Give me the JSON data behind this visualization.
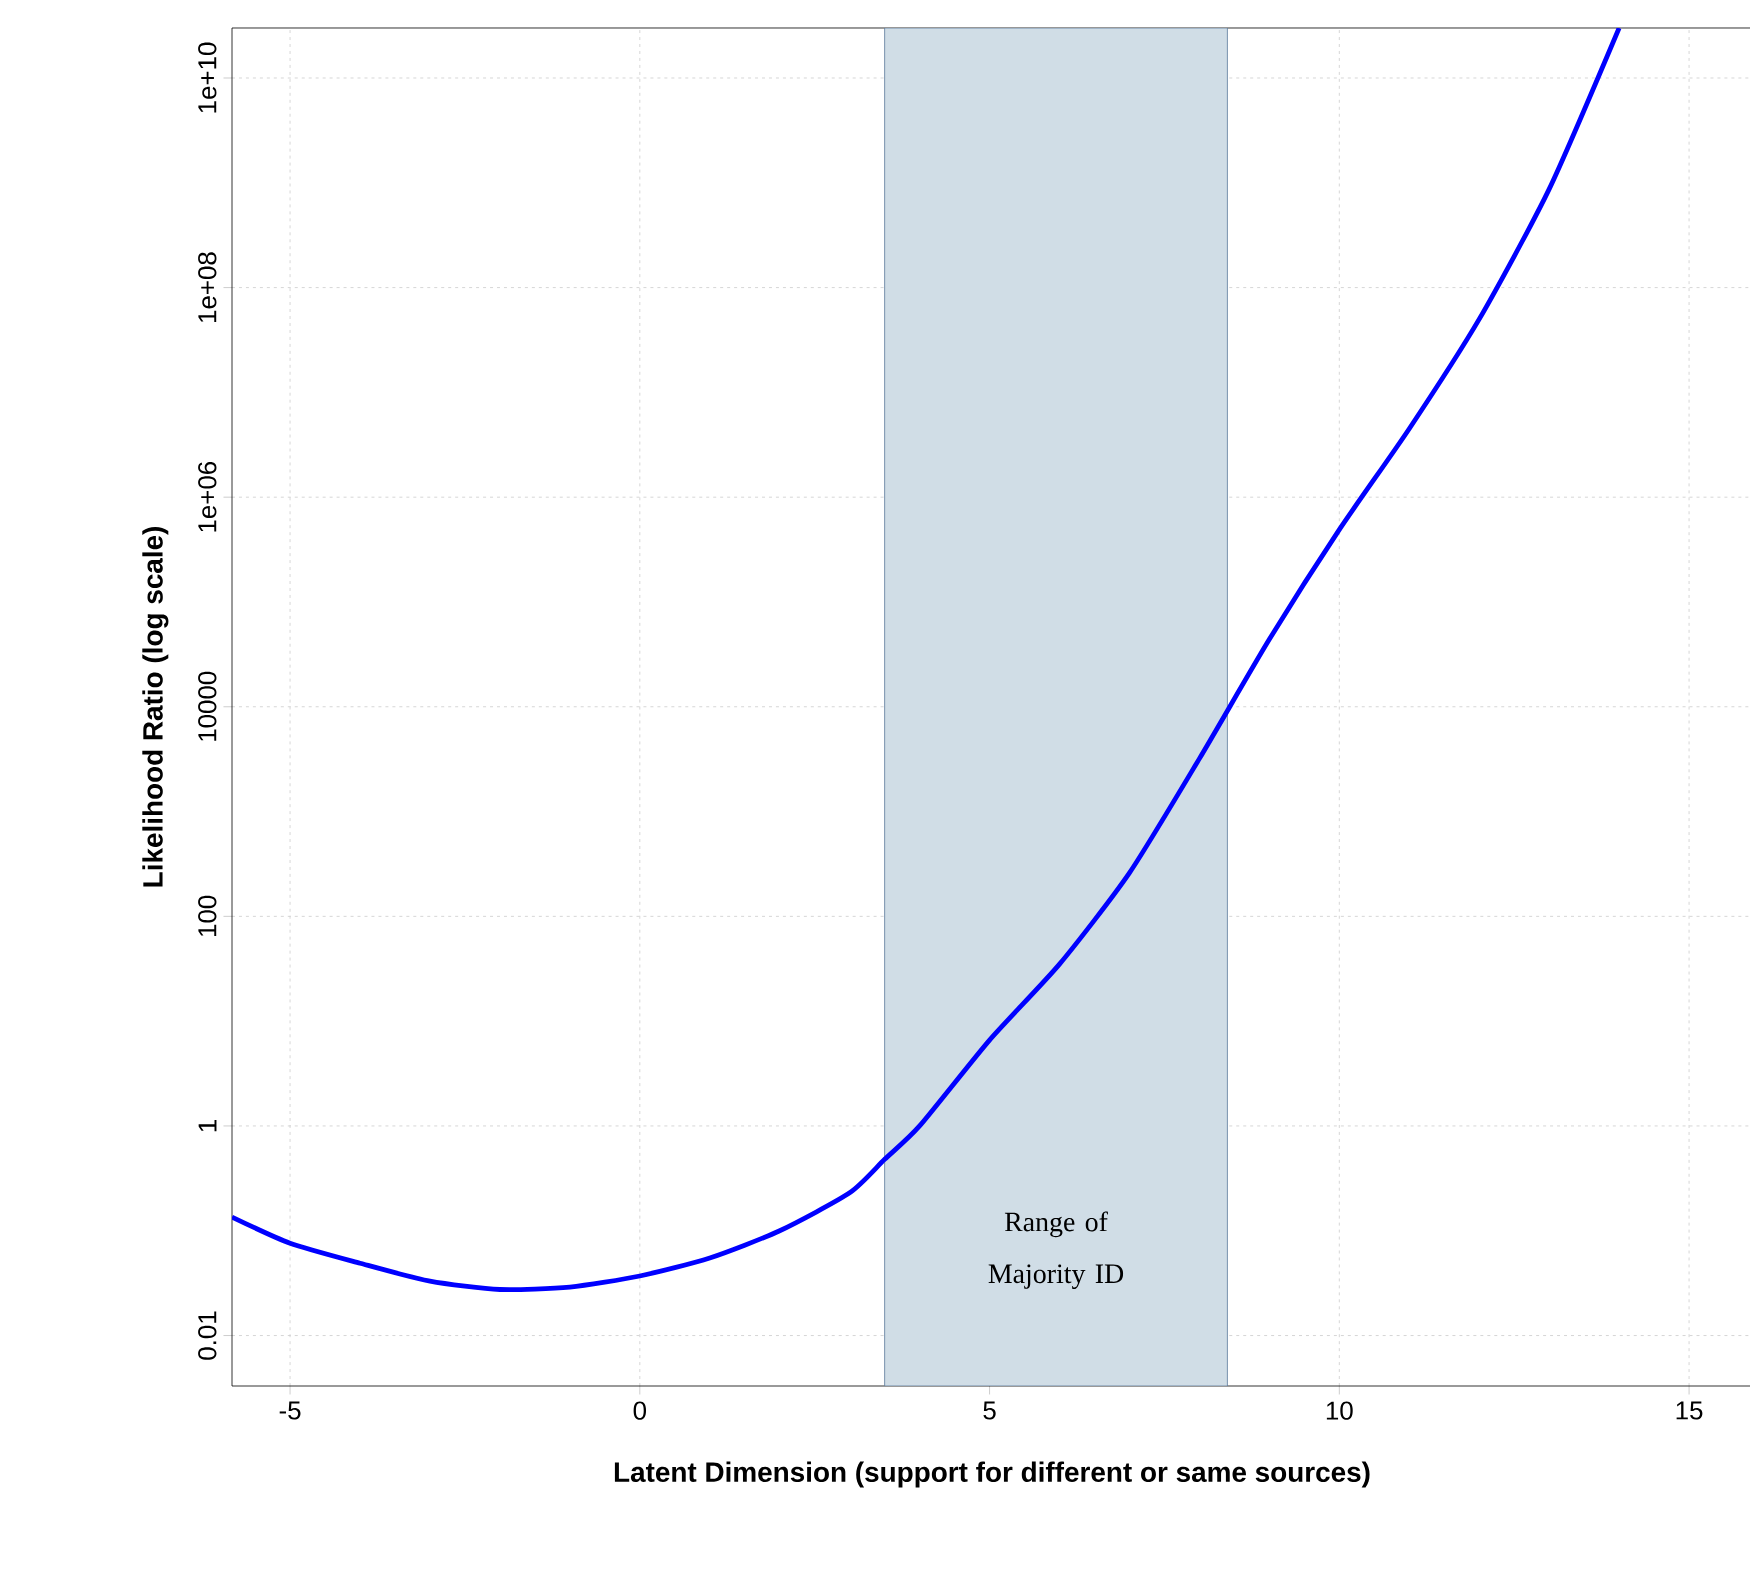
{
  "chart_data": {
    "type": "line",
    "xlabel": "Latent Dimension (support for different or same sources)",
    "ylabel": "Likelihood Ratio (log scale)",
    "log": "y",
    "grid": true,
    "marker": "none",
    "line_style": "solid",
    "xlim": [
      -5.83,
      15.9
    ],
    "ylim": [
      0.0033,
      30000000000
    ],
    "xticks": [
      -5,
      0,
      5,
      10,
      15
    ],
    "yticks": [
      0.01,
      1,
      100,
      10000,
      {
        "value": 1000000,
        "label": "1e+06"
      },
      {
        "value": 100000000,
        "label": "1e+08"
      },
      {
        "value": 10000000000,
        "label": "1e+10"
      }
    ],
    "x": [
      -5.83,
      -5,
      -4,
      -3,
      -2,
      -1,
      0,
      1,
      2,
      3,
      3.5,
      4,
      5,
      6,
      7,
      8,
      9,
      10,
      11,
      12,
      13,
      14
    ],
    "series": [
      {
        "color": "#0000ff",
        "values": [
          0.135,
          0.076,
          0.049,
          0.033,
          0.0275,
          0.029,
          0.037,
          0.055,
          0.1,
          0.23,
          0.48,
          1,
          6.6,
          35,
          260,
          3200,
          44000,
          490000,
          4500000,
          50000000,
          870000000,
          30000000000
        ]
      }
    ],
    "bands": [
      {
        "axis": "x",
        "from": 3.5,
        "to": 8.4,
        "label": "Range of Majority ID",
        "color": "#d0dde6"
      }
    ]
  }
}
